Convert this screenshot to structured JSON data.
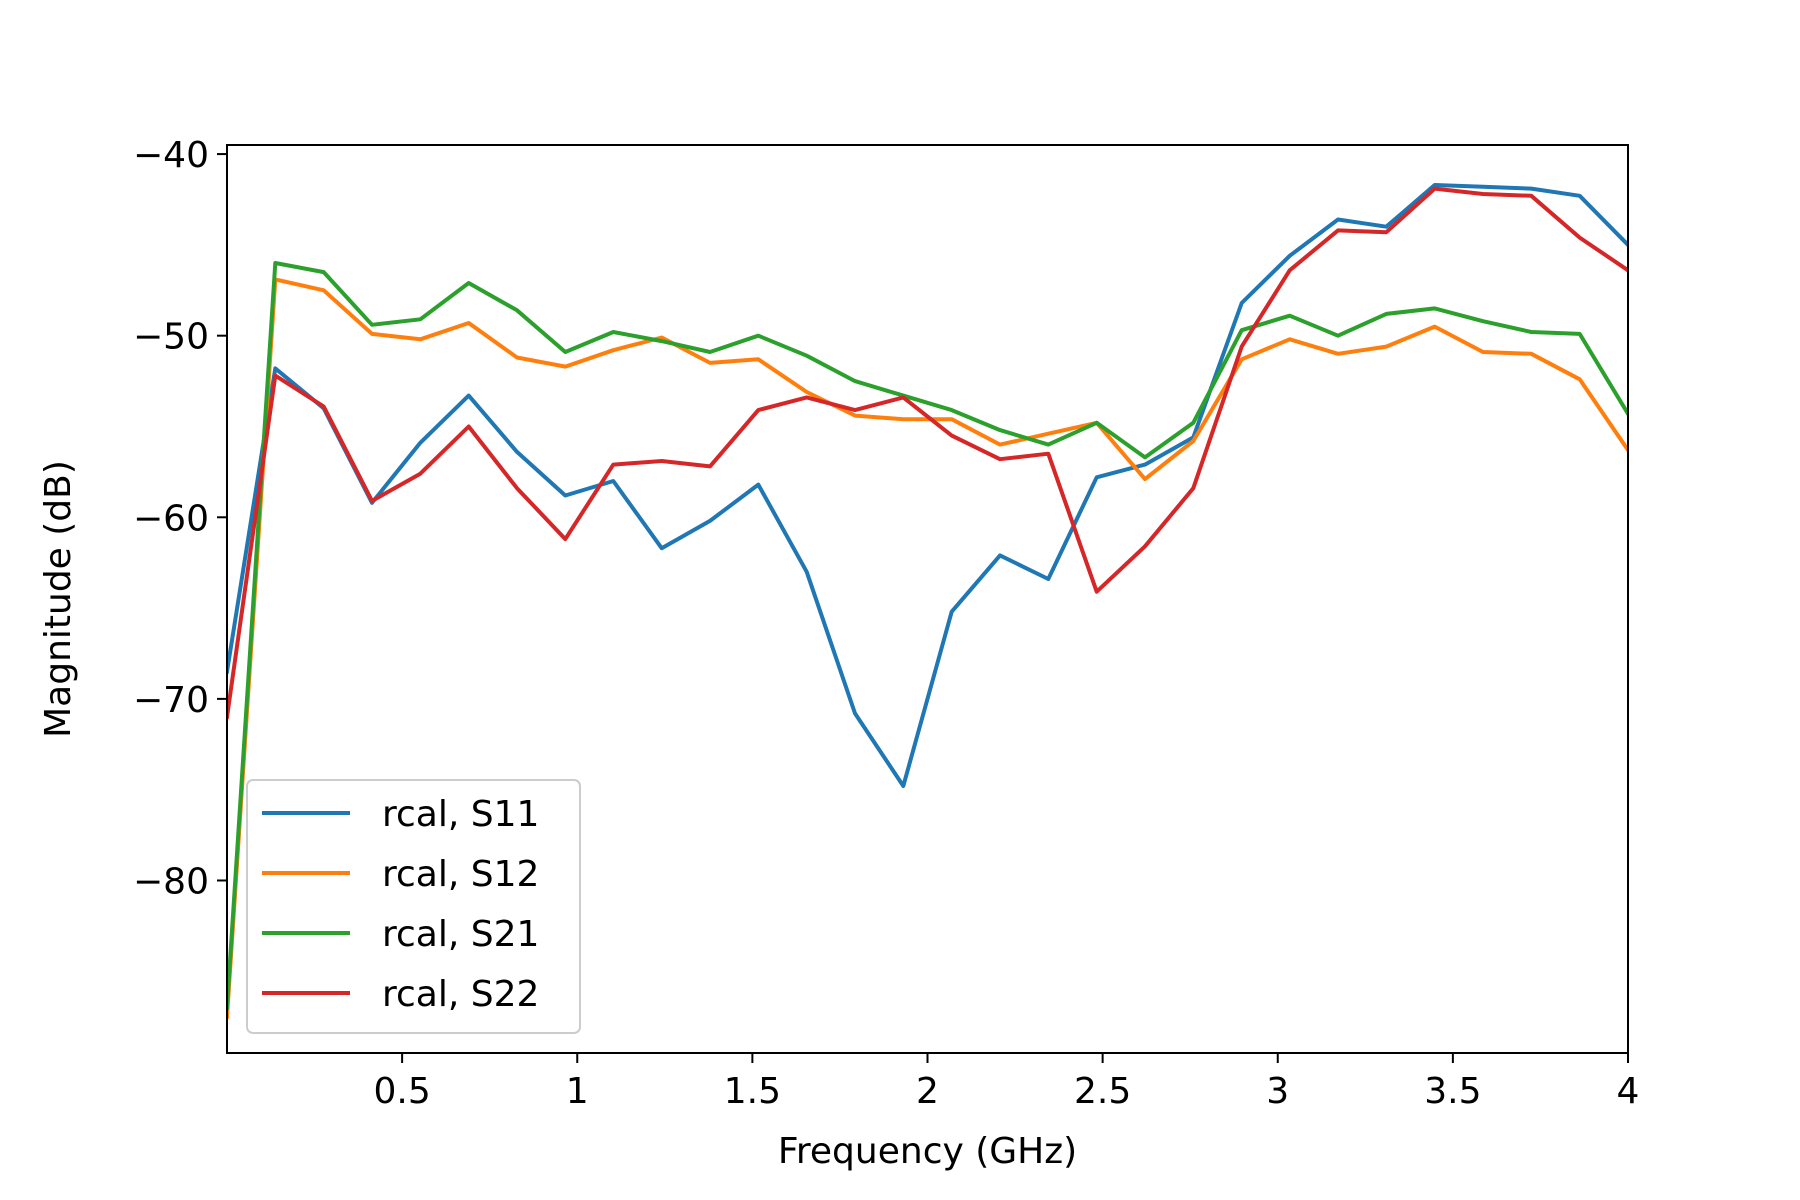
{
  "chart_data": {
    "type": "line",
    "title": "",
    "xlabel": "Frequency (GHz)",
    "ylabel": "Magnitude (dB)",
    "xlim": [
      0.0,
      4.0
    ],
    "ylim": [
      -89.5,
      -39.5
    ],
    "xticks": [
      0.5,
      1,
      1.5,
      2,
      2.5,
      3,
      3.5,
      4
    ],
    "xtick_labels": [
      "0.5",
      "1",
      "1.5",
      "2",
      "2.5",
      "3",
      "3.5",
      "4"
    ],
    "yticks": [
      -80,
      -70,
      -60,
      -50,
      -40
    ],
    "ytick_labels": [
      "−80",
      "−70",
      "−60",
      "−50",
      "−40"
    ],
    "grid": false,
    "legend_placement": "lower-left",
    "x": [
      0.0,
      0.138,
      0.276,
      0.414,
      0.552,
      0.69,
      0.828,
      0.966,
      1.103,
      1.241,
      1.379,
      1.517,
      1.655,
      1.793,
      1.931,
      2.069,
      2.207,
      2.345,
      2.483,
      2.621,
      2.759,
      2.897,
      3.034,
      3.172,
      3.31,
      3.448,
      3.586,
      3.724,
      3.862,
      4.0
    ],
    "series": [
      {
        "name": "rcal, S11",
        "color": "#1f77b4",
        "values": [
          -68.5,
          -51.8,
          -54.0,
          -59.2,
          -55.9,
          -53.3,
          -56.4,
          -58.8,
          -58.0,
          -61.7,
          -60.2,
          -58.2,
          -63.0,
          -70.8,
          -74.8,
          -65.2,
          -62.1,
          -63.4,
          -57.8,
          -57.1,
          -55.6,
          -48.2,
          -45.6,
          -43.6,
          -44.0,
          -41.7,
          -41.8,
          -41.9,
          -42.3,
          -45.0
        ]
      },
      {
        "name": "rcal, S12",
        "color": "#ff7f0e",
        "values": [
          -87.5,
          -46.9,
          -47.5,
          -49.9,
          -50.2,
          -49.3,
          -51.2,
          -51.7,
          -50.8,
          -50.1,
          -51.5,
          -51.3,
          -53.1,
          -54.4,
          -54.6,
          -54.6,
          -56.0,
          -55.4,
          -54.8,
          -57.9,
          -55.8,
          -51.3,
          -50.2,
          -51.0,
          -50.6,
          -49.5,
          -50.9,
          -51.0,
          -52.4,
          -56.3
        ]
      },
      {
        "name": "rcal, S21",
        "color": "#2ca02c",
        "values": [
          -87.0,
          -46.0,
          -46.5,
          -49.4,
          -49.1,
          -47.1,
          -48.6,
          -50.9,
          -49.8,
          -50.3,
          -50.9,
          -50.0,
          -51.1,
          -52.5,
          -53.3,
          -54.1,
          -55.2,
          -56.0,
          -54.8,
          -56.7,
          -54.8,
          -49.7,
          -48.9,
          -50.0,
          -48.8,
          -48.5,
          -49.2,
          -49.8,
          -49.9,
          -54.3
        ]
      },
      {
        "name": "rcal, S22",
        "color": "#d62728",
        "values": [
          -71.0,
          -52.2,
          -53.9,
          -59.1,
          -57.6,
          -55.0,
          -58.4,
          -61.2,
          -57.1,
          -56.9,
          -57.2,
          -54.1,
          -53.4,
          -54.1,
          -53.4,
          -55.5,
          -56.8,
          -56.5,
          -64.1,
          -61.6,
          -58.4,
          -50.6,
          -46.4,
          -44.2,
          -44.3,
          -41.9,
          -42.2,
          -42.3,
          -44.6,
          -46.4
        ]
      }
    ]
  }
}
